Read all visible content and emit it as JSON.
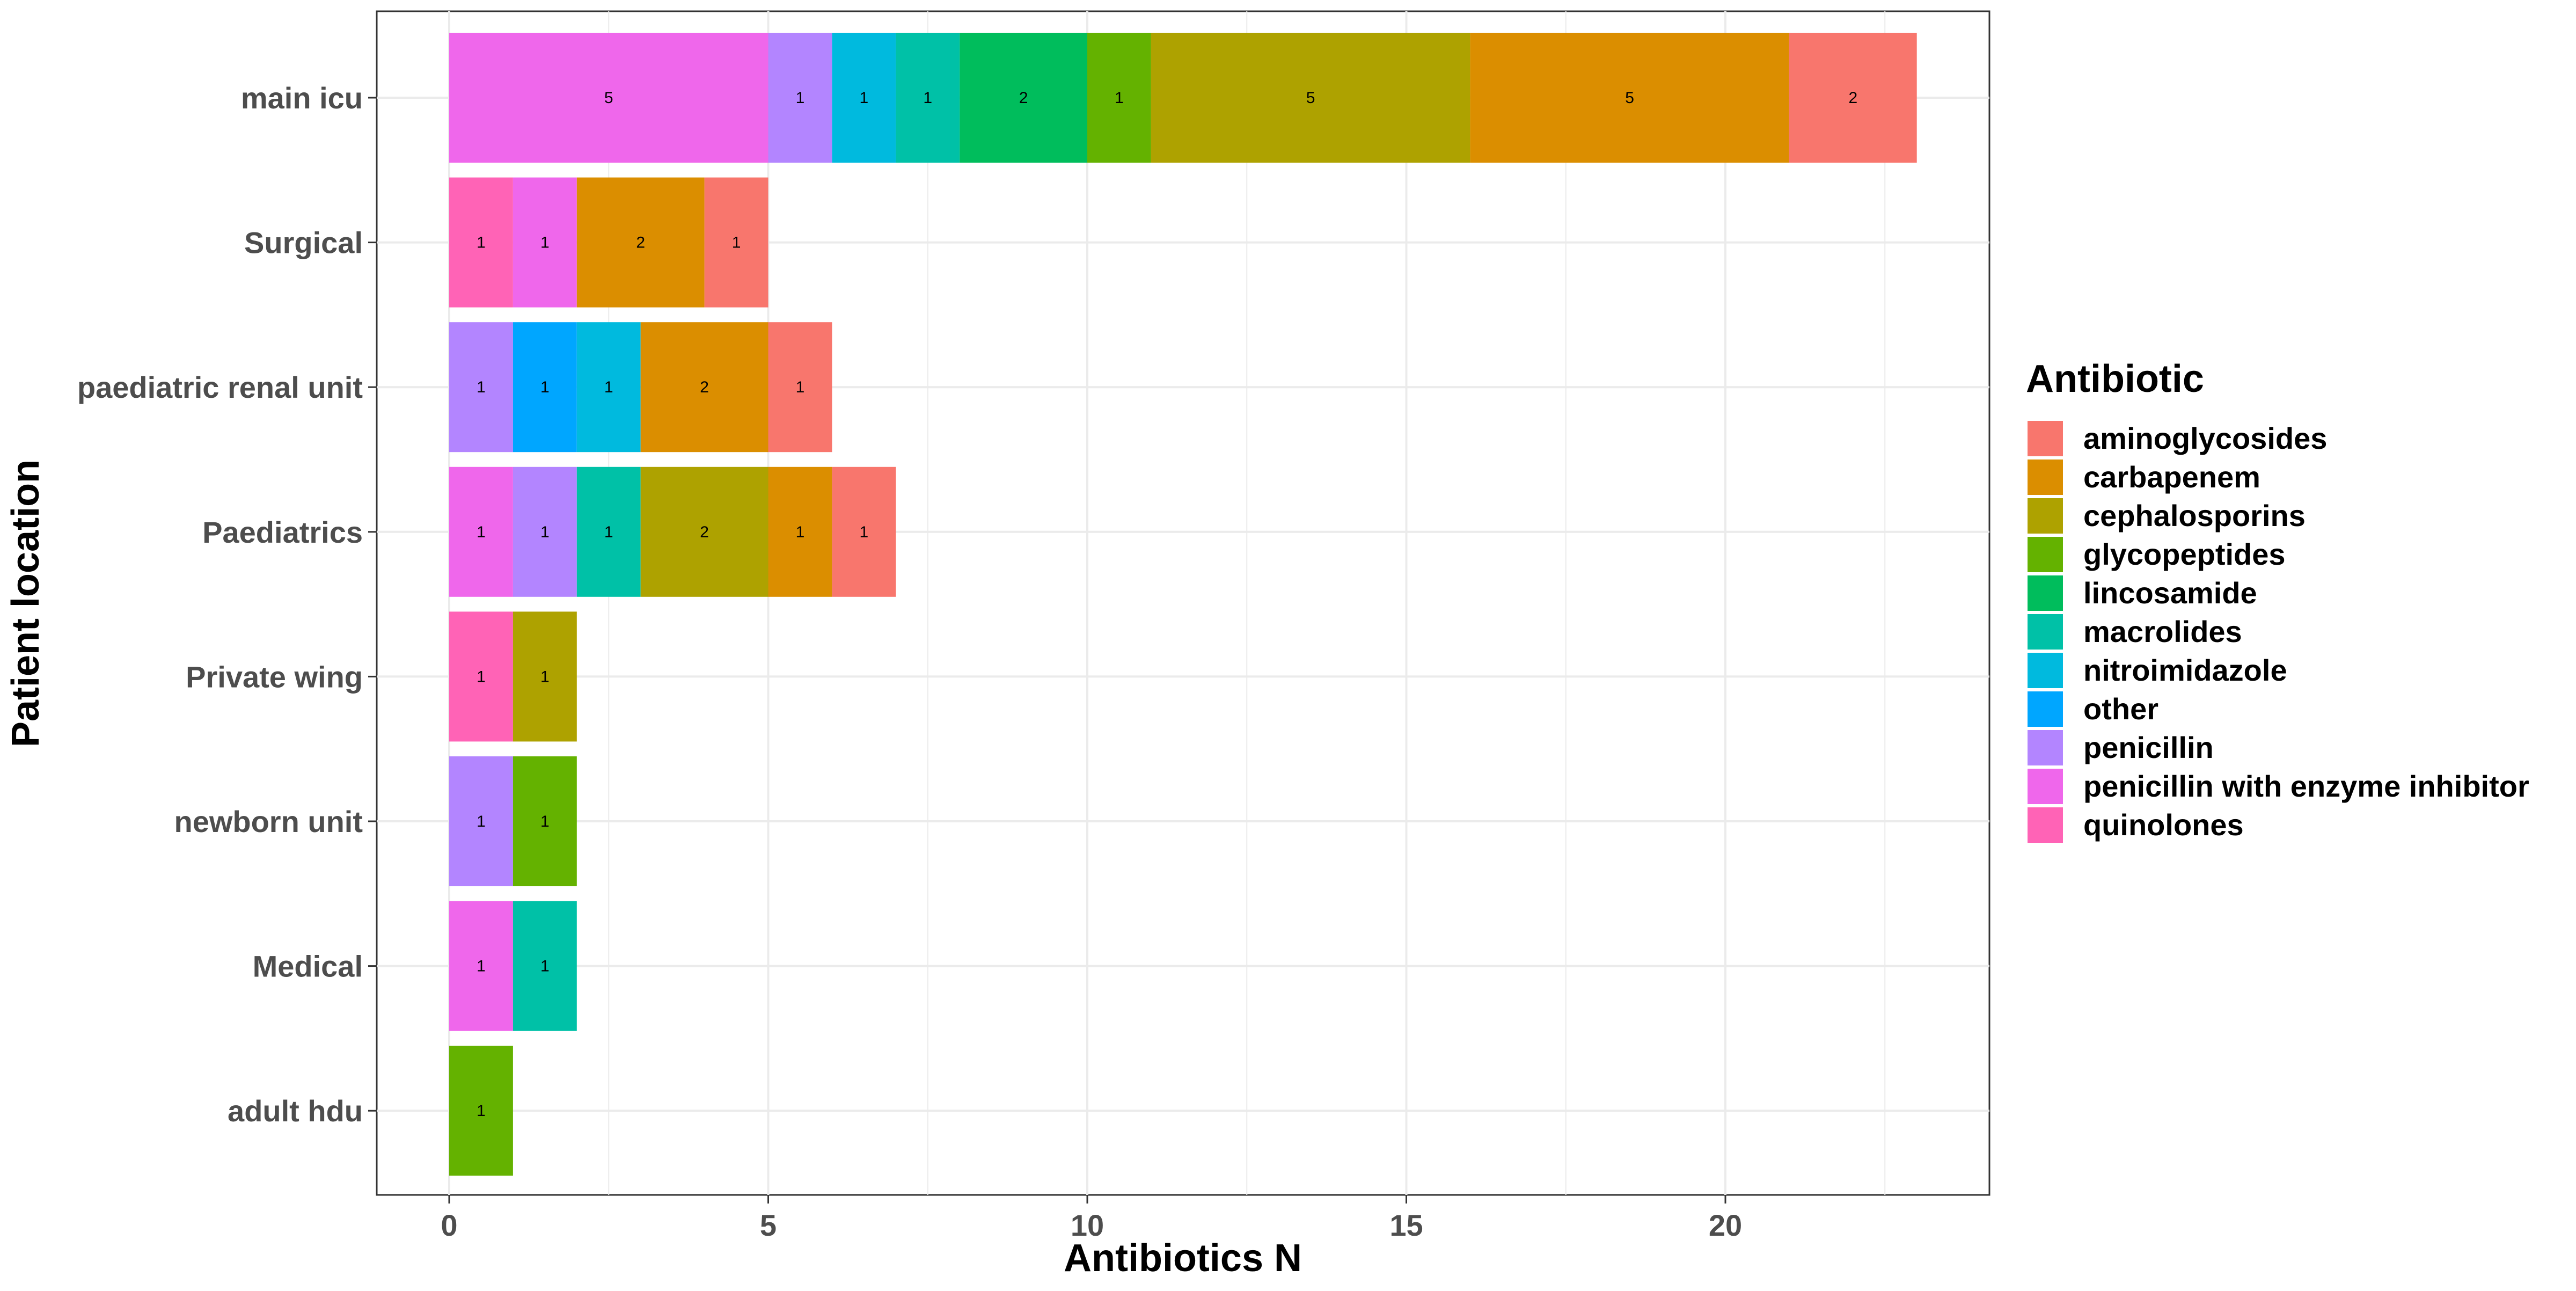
{
  "chart_data": {
    "type": "bar",
    "orientation": "horizontal",
    "stacked": true,
    "xlabel": "Antibiotics N",
    "ylabel": "Patient location",
    "xlim": [
      -1.15,
      24.15
    ],
    "xticks": [
      0,
      5,
      10,
      15,
      20
    ],
    "grid": true,
    "legend": {
      "title": "Antibiotic",
      "position": "right",
      "entries": [
        {
          "name": "aminoglycosides",
          "color": "#F8766D"
        },
        {
          "name": "carbapenem",
          "color": "#DB8E00"
        },
        {
          "name": "cephalosporins",
          "color": "#AEA200"
        },
        {
          "name": "glycopeptides",
          "color": "#64B200"
        },
        {
          "name": "lincosamide",
          "color": "#00BD5C"
        },
        {
          "name": "macrolides",
          "color": "#00C1A7"
        },
        {
          "name": "nitroimidazole",
          "color": "#00BADE"
        },
        {
          "name": "other",
          "color": "#00A6FF"
        },
        {
          "name": "penicillin",
          "color": "#B385FF"
        },
        {
          "name": "penicillin with enzyme inhibitor",
          "color": "#EF67EB"
        },
        {
          "name": "quinolones",
          "color": "#FF63B6"
        }
      ]
    },
    "categories": [
      "main icu",
      "Surgical",
      "paediatric renal unit",
      "Paediatrics",
      "Private wing",
      "newborn unit",
      "Medical",
      "adult hdu"
    ],
    "bars": [
      {
        "category": "main icu",
        "segments": [
          {
            "antibiotic": "penicillin with enzyme inhibitor",
            "value": 5
          },
          {
            "antibiotic": "penicillin",
            "value": 1
          },
          {
            "antibiotic": "nitroimidazole",
            "value": 1
          },
          {
            "antibiotic": "macrolides",
            "value": 1
          },
          {
            "antibiotic": "lincosamide",
            "value": 2
          },
          {
            "antibiotic": "glycopeptides",
            "value": 1
          },
          {
            "antibiotic": "cephalosporins",
            "value": 5
          },
          {
            "antibiotic": "carbapenem",
            "value": 5
          },
          {
            "antibiotic": "aminoglycosides",
            "value": 2
          }
        ]
      },
      {
        "category": "Surgical",
        "segments": [
          {
            "antibiotic": "quinolones",
            "value": 1
          },
          {
            "antibiotic": "penicillin with enzyme inhibitor",
            "value": 1
          },
          {
            "antibiotic": "carbapenem",
            "value": 2
          },
          {
            "antibiotic": "aminoglycosides",
            "value": 1
          }
        ]
      },
      {
        "category": "paediatric renal unit",
        "segments": [
          {
            "antibiotic": "penicillin",
            "value": 1
          },
          {
            "antibiotic": "other",
            "value": 1
          },
          {
            "antibiotic": "nitroimidazole",
            "value": 1
          },
          {
            "antibiotic": "carbapenem",
            "value": 2
          },
          {
            "antibiotic": "aminoglycosides",
            "value": 1
          }
        ]
      },
      {
        "category": "Paediatrics",
        "segments": [
          {
            "antibiotic": "penicillin with enzyme inhibitor",
            "value": 1
          },
          {
            "antibiotic": "penicillin",
            "value": 1
          },
          {
            "antibiotic": "macrolides",
            "value": 1
          },
          {
            "antibiotic": "cephalosporins",
            "value": 2
          },
          {
            "antibiotic": "carbapenem",
            "value": 1
          },
          {
            "antibiotic": "aminoglycosides",
            "value": 1
          }
        ]
      },
      {
        "category": "Private wing",
        "segments": [
          {
            "antibiotic": "quinolones",
            "value": 1
          },
          {
            "antibiotic": "cephalosporins",
            "value": 1
          }
        ]
      },
      {
        "category": "newborn unit",
        "segments": [
          {
            "antibiotic": "penicillin",
            "value": 1
          },
          {
            "antibiotic": "glycopeptides",
            "value": 1
          }
        ]
      },
      {
        "category": "Medical",
        "segments": [
          {
            "antibiotic": "penicillin with enzyme inhibitor",
            "value": 1
          },
          {
            "antibiotic": "macrolides",
            "value": 1
          }
        ]
      },
      {
        "category": "adult hdu",
        "segments": [
          {
            "antibiotic": "glycopeptides",
            "value": 1
          }
        ]
      }
    ]
  }
}
